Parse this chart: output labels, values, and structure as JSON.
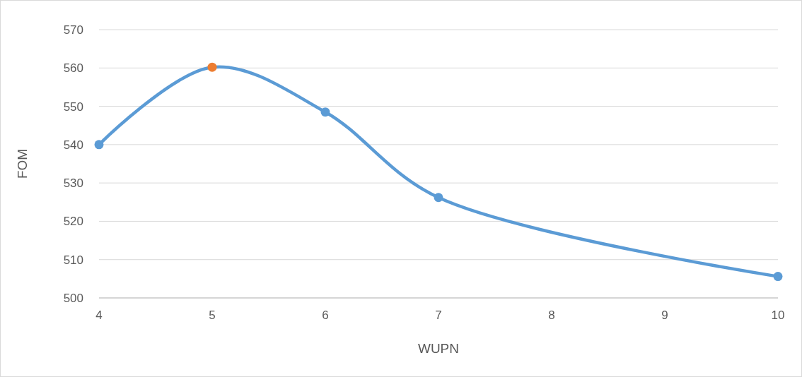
{
  "chart_data": {
    "type": "line",
    "xlabel": "WUPN",
    "ylabel": "FOM",
    "x": [
      4,
      5,
      6,
      7,
      10
    ],
    "series": [
      {
        "color": "#5b9bd5",
        "colors": [
          "#5b9bd5",
          "#ed7d31",
          "#5b9bd5",
          "#5b9bd5",
          "#5b9bd5"
        ],
        "values": [
          540,
          560.2,
          548.5,
          526.2,
          505.6
        ]
      }
    ],
    "xlim": [
      4,
      10
    ],
    "xticks": [
      4,
      5,
      6,
      7,
      8,
      9,
      10
    ],
    "ylim": [
      500,
      570
    ],
    "yticks": [
      500,
      510,
      520,
      530,
      540,
      550,
      560,
      570
    ],
    "grid": "y",
    "marker": "circle",
    "line_style": "solid"
  }
}
